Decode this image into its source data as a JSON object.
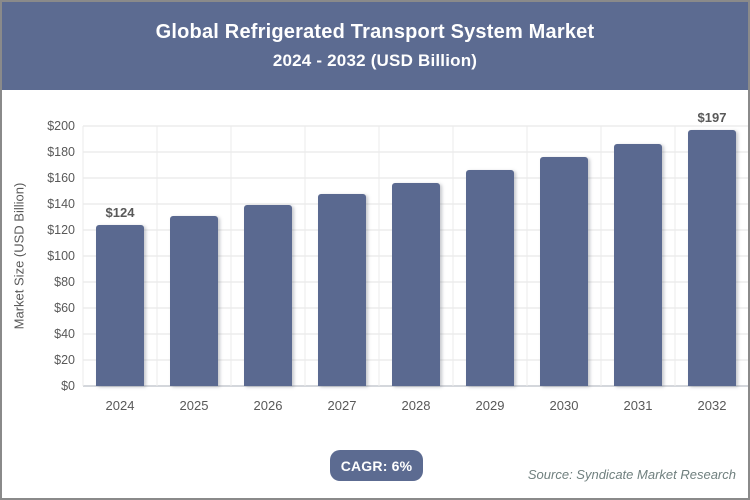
{
  "header": {
    "title": "Global Refrigerated Transport System Market",
    "subtitle": "2024 - 2032 (USD Billion)"
  },
  "chart_data": {
    "type": "bar",
    "categories": [
      "2024",
      "2025",
      "2026",
      "2027",
      "2028",
      "2029",
      "2030",
      "2031",
      "2032"
    ],
    "values": [
      124,
      131,
      139,
      148,
      156,
      166,
      176,
      186,
      197
    ],
    "bar_labels": [
      "$124",
      "",
      "",
      "",
      "",
      "",
      "",
      "",
      "$197"
    ],
    "title": "Global Refrigerated Transport System Market",
    "subtitle": "2024 - 2032 (USD Billion)",
    "xlabel": "",
    "ylabel": "Market Size (USD Billion)",
    "ylim": [
      0,
      200
    ],
    "ytick_step": 20,
    "ytick_prefix": "$",
    "yticks": [
      "$0",
      "$20",
      "$40",
      "$60",
      "$80",
      "$100",
      "$120",
      "$140",
      "$160",
      "$180",
      "$200"
    ],
    "grid": true,
    "legend_position": "none",
    "bar_color": "#5a6990"
  },
  "footer": {
    "cagr_label": "CAGR: 6%",
    "source": "Source: Syndicate Market Research"
  },
  "colors": {
    "header_bg": "#5c6b91",
    "bar": "#5a6990",
    "badge_bg": "#5c6b91",
    "gridline": "#e3e3e3",
    "axis_line": "#a9afb8",
    "tick_text": "#595959",
    "source_text": "#70807f"
  }
}
